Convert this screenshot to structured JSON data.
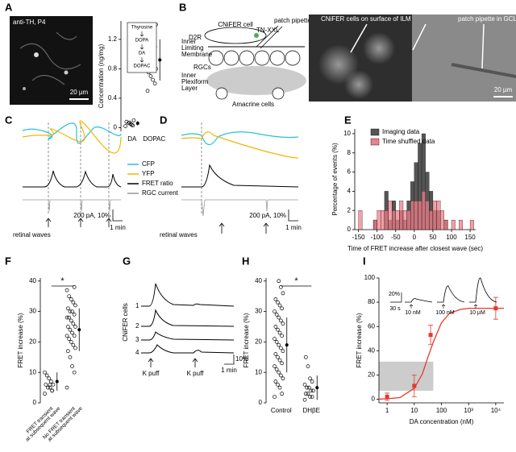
{
  "panel_labels": [
    "A",
    "B",
    "C",
    "D",
    "E",
    "F",
    "G",
    "H",
    "I"
  ],
  "a_image": {
    "label": "anti-TH, P4",
    "scale": "20 µm"
  },
  "b_diagram": {
    "cell": "CNiFER cell",
    "receptor": "D2R",
    "sensor": "TN-XXL",
    "pipette": "patch pipette",
    "ilm": [
      "Inner",
      "Limiting",
      "Membrane"
    ],
    "rgcs": "RGCs",
    "ipl": [
      "Inner",
      "Plexiform",
      "Layer"
    ],
    "amacrine": "Amacrine cells"
  },
  "b_image": {
    "label_left": "CNiFER cells on surface of ILM",
    "label_right": "patch pipette in GCL",
    "scale": "20 µm"
  },
  "c_traces": {
    "legend": [
      "CFP",
      "YFP",
      "FRET ratio",
      "RGC current"
    ],
    "scale_y": "200 pA, 10%",
    "scale_x": "1 min",
    "caption": "retinal waves"
  },
  "d_traces": {
    "scale_y": "200 pA, 10%",
    "scale_x": "1 min",
    "caption": "retinal waves"
  },
  "g_traces": {
    "ylabel": "CNiFER cells",
    "rows": [
      "1",
      "2",
      "3",
      "4"
    ],
    "scale_y": "10%",
    "scale_x": "1 min",
    "stimuli": [
      "K puff",
      "K puff"
    ]
  },
  "chart_data": [
    {
      "type": "strip",
      "ylabel": "Concentration (ng/mg)",
      "ylim": [
        -0.05,
        1.45
      ],
      "yticks": [
        0,
        0.4,
        0.8,
        1.2
      ],
      "categories": [
        "DA",
        "DOPAC"
      ],
      "color": "#000000",
      "groups": [
        [
          0.02,
          0.03,
          0.05,
          0.06,
          0.08,
          0.1,
          0.04,
          0.07
        ],
        [
          0.5,
          0.6,
          0.65,
          0.7,
          0.75,
          0.8,
          0.85,
          0.9,
          0.95,
          1.0,
          1.1,
          1.2,
          1.3,
          1.35,
          1.4
        ]
      ],
      "means": [
        0.06,
        0.92
      ],
      "sd": [
        0.03,
        0.28
      ],
      "pathway": [
        "Thyrosine",
        "DOPA",
        "DA",
        "DOPAC"
      ]
    },
    {
      "type": "histogram",
      "ylabel": "Percentage of events (%)",
      "xlabel": "Time of FRET increase after closest wave (sec)",
      "xlim": [
        -160,
        165
      ],
      "xticks": [
        -150,
        -100,
        -50,
        0,
        50,
        100,
        150
      ],
      "ylim": [
        0,
        10.5
      ],
      "yticks": [
        0,
        2,
        4,
        6,
        8,
        10
      ],
      "legend": "upper-left",
      "bins": [
        -160,
        -150,
        -140,
        -130,
        -120,
        -110,
        -100,
        -90,
        -80,
        -70,
        -60,
        -50,
        -40,
        -30,
        -20,
        -10,
        0,
        10,
        20,
        30,
        40,
        50,
        60,
        70,
        80,
        90,
        100,
        110,
        120,
        130,
        140,
        150,
        160
      ],
      "series": [
        {
          "name": "Imaging data",
          "color": "#555555",
          "values": [
            0,
            0,
            0,
            0,
            0,
            1,
            0,
            0,
            4,
            1,
            3,
            1,
            2,
            1,
            3,
            5,
            7,
            9,
            10,
            6,
            4,
            2,
            2,
            0,
            1,
            0,
            0,
            0,
            0,
            0,
            0,
            0
          ]
        },
        {
          "name": "Time shuffled data",
          "color": "#ef7f8a",
          "values": [
            0,
            2,
            0,
            0,
            0,
            1,
            2,
            2,
            2,
            3,
            2,
            2,
            3,
            2,
            2,
            3,
            3,
            3,
            4,
            3,
            2,
            3,
            3,
            2,
            1,
            0,
            1,
            0,
            1,
            0,
            0,
            1
          ]
        }
      ]
    },
    {
      "type": "strip",
      "ylabel": "FRET increase (%)",
      "ylim": [
        0,
        41
      ],
      "yticks": [
        0,
        10,
        20,
        30,
        40
      ],
      "categories": [
        [
          "FRET transient",
          "at subsequent wave"
        ],
        [
          "No FRET transient",
          "at subsequent wave"
        ]
      ],
      "color": "#000000",
      "groups": [
        [
          3,
          4,
          5,
          5,
          6,
          6,
          7,
          8,
          9,
          10,
          4,
          6
        ],
        [
          5,
          10,
          12,
          15,
          17,
          18,
          19,
          20,
          21,
          22,
          22,
          23,
          24,
          25,
          25,
          26,
          27,
          28,
          28,
          29,
          30,
          30,
          31,
          32,
          33,
          34,
          35,
          37,
          38
        ]
      ],
      "means": [
        7,
        24
      ],
      "sd": [
        3,
        7
      ],
      "significance": "*"
    },
    {
      "type": "strip",
      "ylabel": "FRET increase (%)",
      "ylim": [
        0,
        41
      ],
      "yticks": [
        0,
        10,
        20,
        30,
        40
      ],
      "categories": [
        "Control",
        "DHβE"
      ],
      "color": "#000000",
      "groups": [
        [
          2,
          3,
          5,
          6,
          7,
          8,
          9,
          10,
          11,
          12,
          13,
          14,
          15,
          16,
          17,
          18,
          19,
          20,
          21,
          22,
          23,
          24,
          25,
          26,
          27,
          28,
          29,
          30,
          31,
          32,
          33,
          34,
          36,
          38,
          40
        ],
        [
          1,
          2,
          2,
          3,
          3,
          4,
          4,
          5,
          5,
          6,
          7,
          8,
          12,
          15
        ]
      ],
      "means": [
        19,
        5
      ],
      "sd": [
        9,
        4
      ],
      "significance": "*"
    },
    {
      "type": "line",
      "log_x": true,
      "xlabel": "DA concentration (nM)",
      "ylabel": "FRET increase (%)",
      "xlim": [
        0.5,
        20000
      ],
      "xticks": [
        1,
        10,
        100,
        {
          "value": 1000,
          "label": "10³"
        },
        {
          "value": 10000,
          "label": "10⁴"
        }
      ],
      "ylim": [
        -3,
        100
      ],
      "yticks": [
        0,
        20,
        40,
        60,
        80,
        100
      ],
      "color": "#e8372c",
      "x": [
        1,
        10,
        40,
        10000
      ],
      "values": [
        2,
        11,
        53,
        75
      ],
      "errors": [
        3,
        9,
        8,
        9
      ],
      "fit": {
        "x": [
          0.5,
          1,
          3,
          10,
          20,
          30,
          50,
          100,
          200,
          500,
          1000,
          10000,
          20000
        ],
        "values": [
          0.1,
          0.3,
          1.4,
          9,
          21,
          33,
          47,
          63,
          71,
          74,
          75,
          75,
          75
        ]
      },
      "shade": {
        "x": [
          0.5,
          50
        ],
        "y": [
          7,
          31
        ]
      },
      "inset": {
        "labels": [
          "10 nM",
          "100 nM",
          "10 µM"
        ],
        "scale_y": "20%",
        "scale_x": "30 s"
      }
    }
  ]
}
